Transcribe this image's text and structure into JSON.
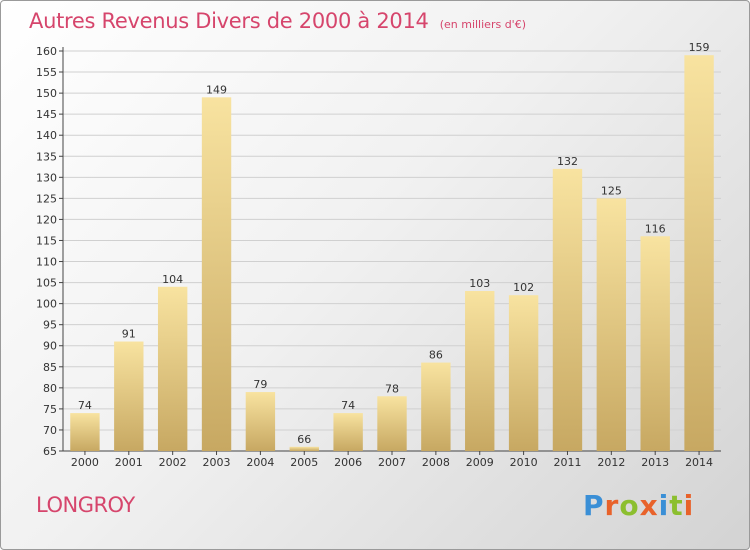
{
  "header": {
    "title": "Autres Revenus Divers de 2000 à 2014",
    "subtitle": "(en milliers d'€)"
  },
  "footer": {
    "commune": "LONGROY",
    "logo": {
      "text": "Proxiti",
      "letter_colors": [
        "#3a8fd6",
        "#e8622a",
        "#8cbf2f",
        "#e8622a",
        "#3a8fd6",
        "#8cbf2f",
        "#e8622a"
      ]
    }
  },
  "chart_data": {
    "type": "bar",
    "title": "Autres Revenus Divers de 2000 à 2014",
    "subtitle": "(en milliers d'€)",
    "categories": [
      "2000",
      "2001",
      "2002",
      "2003",
      "2004",
      "2005",
      "2006",
      "2007",
      "2008",
      "2009",
      "2010",
      "2011",
      "2012",
      "2013",
      "2014"
    ],
    "values": [
      74,
      91,
      104,
      149,
      79,
      66,
      74,
      78,
      86,
      103,
      102,
      132,
      125,
      116,
      159
    ],
    "ylim": [
      65,
      160
    ],
    "yticks": [
      65,
      70,
      75,
      80,
      85,
      90,
      95,
      100,
      105,
      110,
      115,
      120,
      125,
      130,
      135,
      140,
      145,
      150,
      155,
      160
    ],
    "grid": true,
    "legend": "none",
    "colors": {
      "bar_light": "#f8e3a0",
      "bar_dark": "#c7a862",
      "axis": "#444444",
      "grid": "#d0d0d0"
    }
  }
}
